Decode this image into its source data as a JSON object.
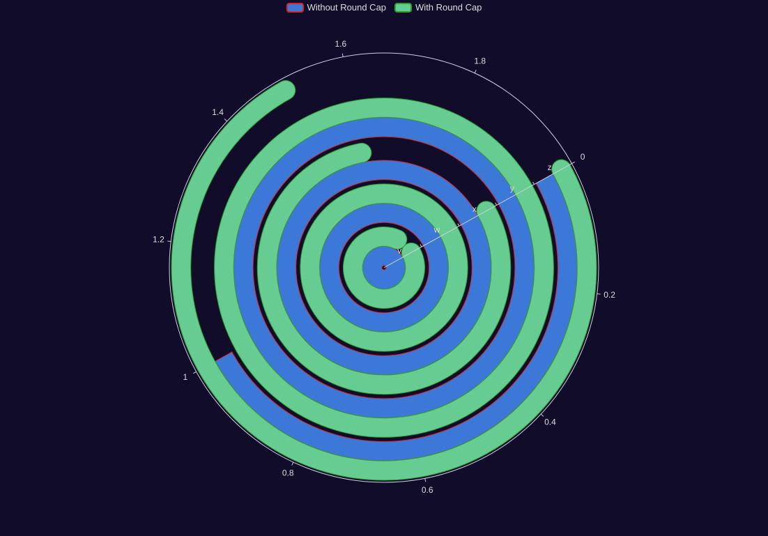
{
  "legend": {
    "items": [
      {
        "label": "Without Round Cap",
        "fill": "#3b78d8",
        "border": "#d62728"
      },
      {
        "label": "With Round Cap",
        "fill": "#66cc91",
        "border": "#2ca02c"
      }
    ]
  },
  "chart_data": {
    "type": "bar",
    "coordinate_system": "polar-stacked",
    "angle_axis": {
      "min": 0,
      "max": 2,
      "ticks": [
        "0",
        "0.2",
        "0.4",
        "0.6",
        "0.8",
        "1",
        "1.2",
        "1.4",
        "1.6",
        "1.8"
      ],
      "tick_values": [
        0,
        0.2,
        0.4,
        0.6,
        0.8,
        1,
        1.2,
        1.4,
        1.6,
        1.8
      ],
      "clockwise": true
    },
    "radius_axis": {
      "categories": [
        "v",
        "w",
        "x",
        "y",
        "z"
      ]
    },
    "series": [
      {
        "name": "Without Round Cap",
        "values": [
          2.0,
          2.0,
          2.0,
          2.0,
          1.0
        ],
        "color": "#3b78d8",
        "border_color": "#d62728",
        "round_cap": false
      },
      {
        "name": "With Round Cap",
        "values": [
          1.8,
          2.0,
          1.6,
          2.0,
          1.5
        ],
        "color": "#66cc91",
        "border_color": "#2ca02c",
        "round_cap": true
      }
    ],
    "grid": false,
    "legend_position": "top"
  }
}
